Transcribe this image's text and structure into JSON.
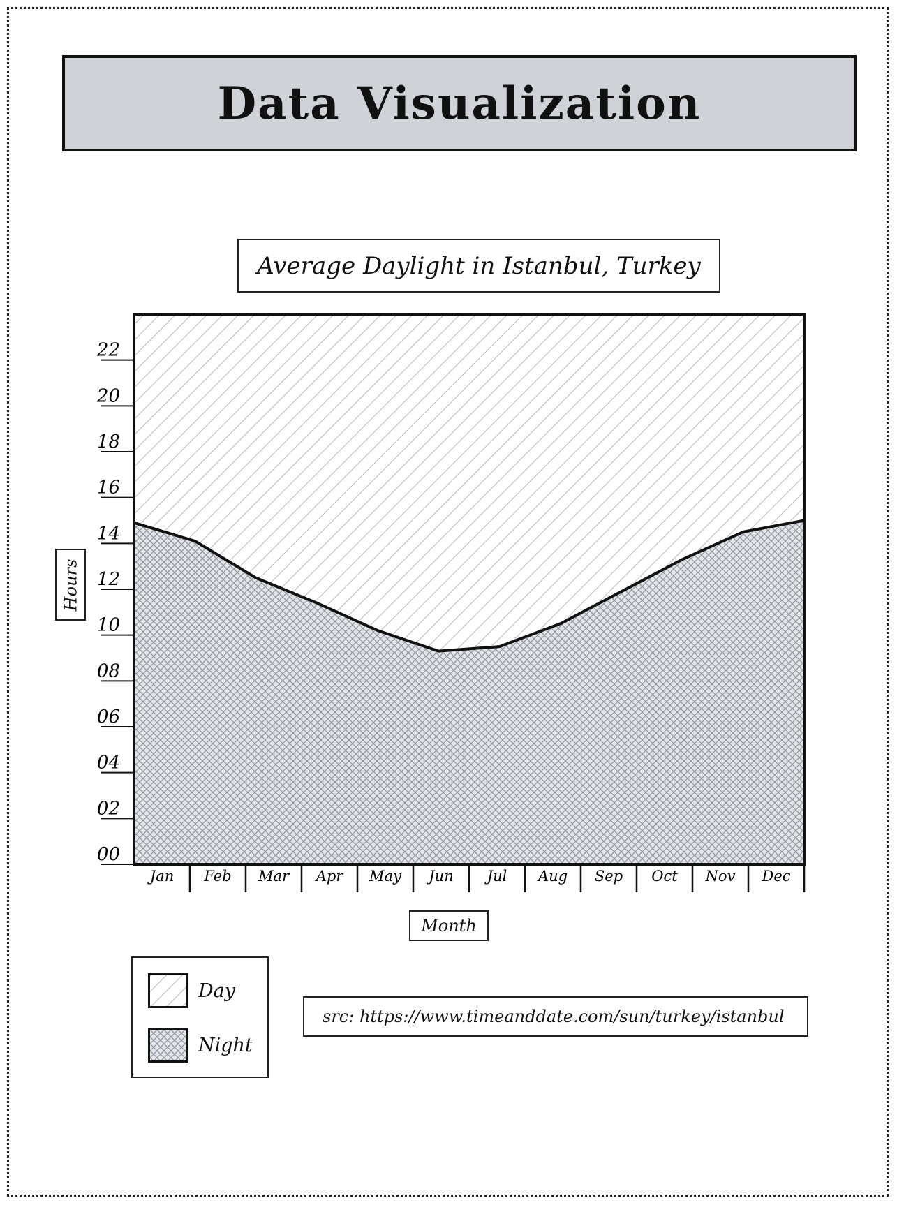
{
  "header": {
    "title": "Data Visualization"
  },
  "chart_data": {
    "type": "area",
    "title": "Average Daylight in Istanbul, Turkey",
    "xlabel": "Month",
    "ylabel": "Hours",
    "categories": [
      "Jan",
      "Feb",
      "Mar",
      "Apr",
      "May",
      "Jun",
      "Jul",
      "Aug",
      "Sep",
      "Oct",
      "Nov",
      "Dec"
    ],
    "y_ticks": [
      "00",
      "02",
      "04",
      "06",
      "08",
      "10",
      "12",
      "14",
      "16",
      "18",
      "20",
      "22"
    ],
    "ylim": [
      0,
      24
    ],
    "series": [
      {
        "name": "Night",
        "values": [
          14.9,
          14.1,
          12.5,
          11.4,
          10.2,
          9.3,
          9.5,
          10.5,
          11.9,
          13.3,
          14.5,
          15.0
        ]
      },
      {
        "name": "Day",
        "values": [
          9.1,
          9.9,
          11.5,
          12.6,
          13.8,
          14.7,
          14.5,
          13.5,
          12.1,
          10.7,
          9.5,
          9.0
        ]
      }
    ],
    "grid": false,
    "legend_position": "bottom-left"
  },
  "legend": {
    "items": [
      {
        "label": "Day"
      },
      {
        "label": "Night"
      }
    ]
  },
  "source": {
    "text": "src: https://www.timeanddate.com/sun/turkey/istanbul"
  },
  "colors": {
    "header_fill": "#cfd3d8",
    "hatch": "#9aa1aa",
    "outline": "#111111"
  }
}
